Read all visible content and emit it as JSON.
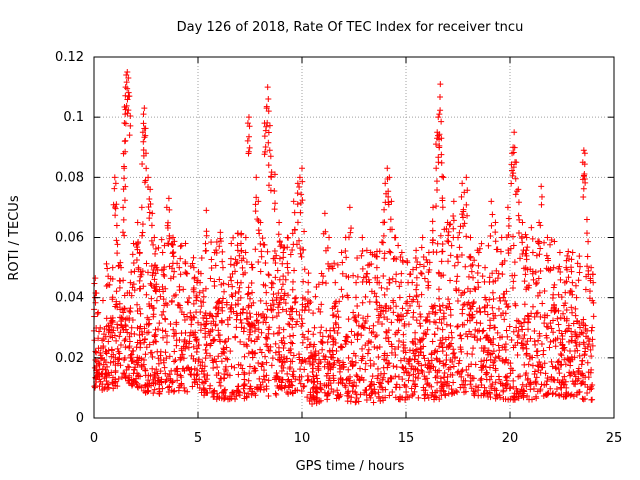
{
  "chart_data": {
    "type": "scatter",
    "title": "Day 126 of 2018, Rate Of TEC Index for receiver tncu",
    "xlabel": "GPS time / hours",
    "ylabel": "ROTI / TECUs",
    "xlim": [
      0,
      25
    ],
    "ylim": [
      0,
      0.12
    ],
    "x_ticks": [
      0,
      5,
      10,
      15,
      20,
      25
    ],
    "x_tick_labels": [
      "0",
      "5",
      "10",
      "15",
      "20",
      "25"
    ],
    "y_ticks": [
      0,
      0.02,
      0.04,
      0.06,
      0.08,
      0.1,
      0.12
    ],
    "y_tick_labels": [
      "0",
      "0.02",
      "0.04",
      "0.06",
      "0.08",
      "0.1",
      "0.12"
    ],
    "grid": true,
    "marker": "+",
    "color": "#ff0000",
    "series": [
      {
        "name": "ROTI",
        "points": [
          [
            0.05,
            0.04
          ],
          [
            0.3,
            0.03
          ],
          [
            0.6,
            0.022
          ],
          [
            0.9,
            0.05
          ],
          [
            1.0,
            0.08
          ],
          [
            1.05,
            0.078
          ],
          [
            1.1,
            0.064
          ],
          [
            1.3,
            0.05
          ],
          [
            1.4,
            0.07
          ],
          [
            1.45,
            0.083
          ],
          [
            1.48,
            0.092
          ],
          [
            1.5,
            0.101
          ],
          [
            1.52,
            0.11
          ],
          [
            1.55,
            0.114
          ],
          [
            1.6,
            0.115
          ],
          [
            1.65,
            0.113
          ],
          [
            1.7,
            0.107
          ],
          [
            1.75,
            0.045
          ],
          [
            1.9,
            0.058
          ],
          [
            2.1,
            0.065
          ],
          [
            2.2,
            0.055
          ],
          [
            2.3,
            0.07
          ],
          [
            2.35,
            0.095
          ],
          [
            2.38,
            0.101
          ],
          [
            2.42,
            0.103
          ],
          [
            2.5,
            0.088
          ],
          [
            2.6,
            0.08
          ],
          [
            2.7,
            0.076
          ],
          [
            2.8,
            0.068
          ],
          [
            2.9,
            0.06
          ],
          [
            3.0,
            0.05
          ],
          [
            3.3,
            0.055
          ],
          [
            3.5,
            0.07
          ],
          [
            3.6,
            0.073
          ],
          [
            3.8,
            0.06
          ],
          [
            4.1,
            0.05
          ],
          [
            4.4,
            0.058
          ],
          [
            4.8,
            0.05
          ],
          [
            5.1,
            0.045
          ],
          [
            5.4,
            0.069
          ],
          [
            5.8,
            0.055
          ],
          [
            6.2,
            0.05
          ],
          [
            6.6,
            0.058
          ],
          [
            6.9,
            0.045
          ],
          [
            7.3,
            0.06
          ],
          [
            7.4,
            0.098
          ],
          [
            7.45,
            0.1
          ],
          [
            7.6,
            0.05
          ],
          [
            7.8,
            0.08
          ],
          [
            7.9,
            0.072
          ],
          [
            8.0,
            0.065
          ],
          [
            8.2,
            0.098
          ],
          [
            8.3,
            0.103
          ],
          [
            8.35,
            0.11
          ],
          [
            8.4,
            0.102
          ],
          [
            8.45,
            0.089
          ],
          [
            8.5,
            0.087
          ],
          [
            8.7,
            0.081
          ],
          [
            8.9,
            0.065
          ],
          [
            9.1,
            0.055
          ],
          [
            9.3,
            0.06
          ],
          [
            9.6,
            0.072
          ],
          [
            9.8,
            0.078
          ],
          [
            9.9,
            0.08
          ],
          [
            10.0,
            0.083
          ],
          [
            10.1,
            0.062
          ],
          [
            10.3,
            0.045
          ],
          [
            10.6,
            0.03
          ],
          [
            11.1,
            0.068
          ],
          [
            11.3,
            0.06
          ],
          [
            11.6,
            0.045
          ],
          [
            11.9,
            0.055
          ],
          [
            12.1,
            0.06
          ],
          [
            12.3,
            0.07
          ],
          [
            12.6,
            0.045
          ],
          [
            12.9,
            0.06
          ],
          [
            13.3,
            0.055
          ],
          [
            13.6,
            0.05
          ],
          [
            13.9,
            0.065
          ],
          [
            14.0,
            0.078
          ],
          [
            14.1,
            0.083
          ],
          [
            14.2,
            0.08
          ],
          [
            14.3,
            0.072
          ],
          [
            14.5,
            0.06
          ],
          [
            14.8,
            0.055
          ],
          [
            15.1,
            0.045
          ],
          [
            15.5,
            0.05
          ],
          [
            15.8,
            0.06
          ],
          [
            16.1,
            0.055
          ],
          [
            16.3,
            0.07
          ],
          [
            16.45,
            0.083
          ],
          [
            16.5,
            0.095
          ],
          [
            16.55,
            0.1
          ],
          [
            16.6,
            0.101
          ],
          [
            16.65,
            0.111
          ],
          [
            16.7,
            0.093
          ],
          [
            16.8,
            0.08
          ],
          [
            17.0,
            0.065
          ],
          [
            17.3,
            0.072
          ],
          [
            17.5,
            0.06
          ],
          [
            17.7,
            0.078
          ],
          [
            17.8,
            0.075
          ],
          [
            17.9,
            0.08
          ],
          [
            18.1,
            0.06
          ],
          [
            18.5,
            0.055
          ],
          [
            18.8,
            0.05
          ],
          [
            19.1,
            0.072
          ],
          [
            19.3,
            0.065
          ],
          [
            19.6,
            0.06
          ],
          [
            19.9,
            0.07
          ],
          [
            20.1,
            0.088
          ],
          [
            20.15,
            0.09
          ],
          [
            20.2,
            0.095
          ],
          [
            20.3,
            0.085
          ],
          [
            20.4,
            0.076
          ],
          [
            20.6,
            0.065
          ],
          [
            20.8,
            0.06
          ],
          [
            21.1,
            0.055
          ],
          [
            21.4,
            0.065
          ],
          [
            21.5,
            0.077
          ],
          [
            21.8,
            0.06
          ],
          [
            22.1,
            0.05
          ],
          [
            22.4,
            0.055
          ],
          [
            22.7,
            0.05
          ],
          [
            23.0,
            0.045
          ],
          [
            23.2,
            0.04
          ],
          [
            23.5,
            0.085
          ],
          [
            23.55,
            0.089
          ],
          [
            23.6,
            0.088
          ],
          [
            23.7,
            0.066
          ],
          [
            23.9,
            0.05
          ],
          [
            24.0,
            0.045
          ]
        ]
      }
    ],
    "band": {
      "description": "dense cloud of points forming the data floor/ceiling envelope",
      "x": [
        0,
        0.5,
        1.0,
        1.5,
        2.0,
        2.5,
        3.0,
        3.5,
        4.0,
        4.5,
        5.0,
        5.5,
        6.0,
        6.5,
        7.0,
        7.5,
        8.0,
        8.5,
        9.0,
        9.5,
        10.0,
        10.5,
        11.0,
        11.5,
        12.0,
        12.5,
        13.0,
        13.5,
        14.0,
        14.5,
        15.0,
        15.5,
        16.0,
        16.5,
        17.0,
        17.5,
        18.0,
        18.5,
        19.0,
        19.5,
        20.0,
        20.5,
        21.0,
        21.5,
        22.0,
        22.5,
        23.0,
        23.5,
        24.0
      ],
      "low": [
        0.01,
        0.009,
        0.01,
        0.012,
        0.01,
        0.008,
        0.008,
        0.008,
        0.009,
        0.008,
        0.008,
        0.007,
        0.006,
        0.006,
        0.006,
        0.007,
        0.008,
        0.007,
        0.008,
        0.008,
        0.009,
        0.004,
        0.006,
        0.006,
        0.006,
        0.005,
        0.006,
        0.005,
        0.006,
        0.006,
        0.006,
        0.006,
        0.006,
        0.006,
        0.007,
        0.008,
        0.008,
        0.007,
        0.007,
        0.006,
        0.006,
        0.006,
        0.006,
        0.007,
        0.008,
        0.007,
        0.007,
        0.006,
        0.006
      ],
      "high": [
        0.03,
        0.032,
        0.034,
        0.035,
        0.036,
        0.034,
        0.035,
        0.04,
        0.038,
        0.036,
        0.036,
        0.036,
        0.04,
        0.038,
        0.04,
        0.038,
        0.04,
        0.04,
        0.04,
        0.042,
        0.04,
        0.02,
        0.03,
        0.03,
        0.032,
        0.034,
        0.034,
        0.034,
        0.04,
        0.038,
        0.034,
        0.034,
        0.036,
        0.04,
        0.042,
        0.044,
        0.042,
        0.038,
        0.036,
        0.034,
        0.04,
        0.04,
        0.042,
        0.04,
        0.038,
        0.036,
        0.034,
        0.032,
        0.03
      ]
    }
  }
}
